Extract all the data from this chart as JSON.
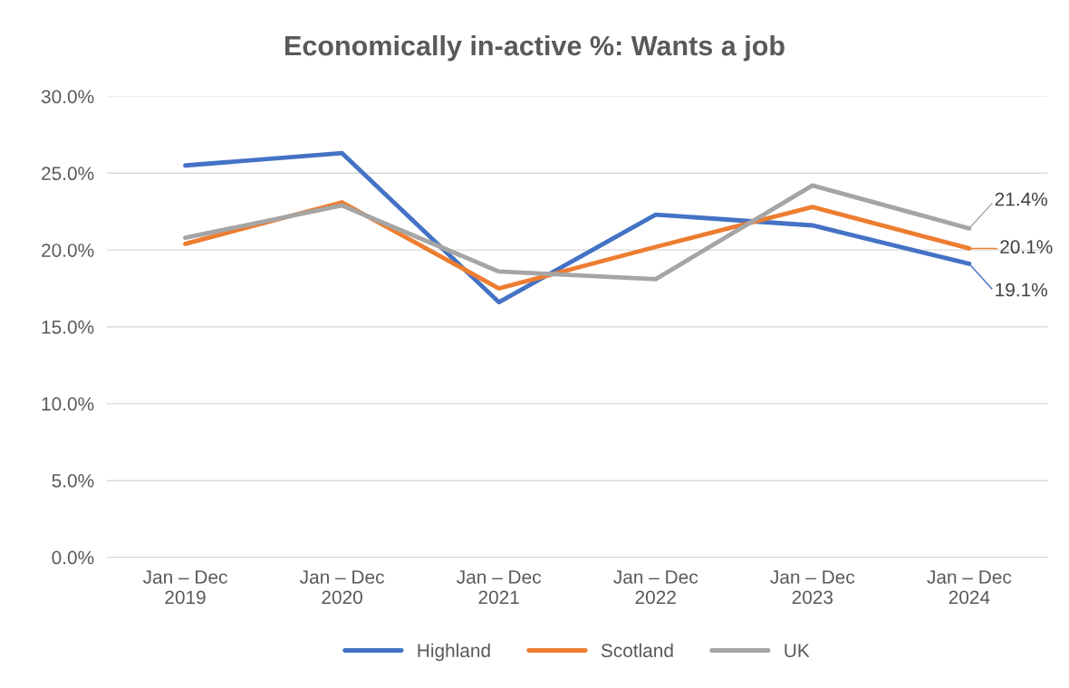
{
  "chart_data": {
    "type": "line",
    "title": "Economically in-active %: Wants a job",
    "categories": [
      "Jan – Dec\n2019",
      "Jan – Dec\n2020",
      "Jan – Dec\n2021",
      "Jan – Dec\n2022",
      "Jan – Dec\n2023",
      "Jan – Dec\n2024"
    ],
    "series": [
      {
        "name": "Highland",
        "color": "#4472c4",
        "values": [
          25.5,
          26.3,
          16.6,
          22.3,
          21.6,
          19.1
        ],
        "value_labels": [
          null,
          null,
          null,
          null,
          null,
          "19.1%"
        ]
      },
      {
        "name": "Scotland",
        "color": "#ed7d31",
        "values": [
          20.4,
          23.1,
          17.5,
          20.2,
          22.8,
          20.1
        ],
        "value_labels": [
          null,
          null,
          null,
          null,
          null,
          "20.1%"
        ]
      },
      {
        "name": "UK",
        "color": "#a5a5a5",
        "values": [
          20.8,
          22.9,
          18.6,
          18.1,
          24.2,
          21.4
        ],
        "value_labels": [
          null,
          null,
          null,
          null,
          null,
          "21.4%"
        ]
      }
    ],
    "ylim": [
      0,
      30
    ],
    "yticks": [
      {
        "value": 0,
        "label": "0.0%"
      },
      {
        "value": 5,
        "label": "5.0%"
      },
      {
        "value": 10,
        "label": "10.0%"
      },
      {
        "value": 15,
        "label": "15.0%"
      },
      {
        "value": 20,
        "label": "20.0%"
      },
      {
        "value": 25,
        "label": "25.0%"
      },
      {
        "value": 30,
        "label": "30.0%"
      }
    ],
    "grid": "y",
    "legend": "bottom",
    "marker": "none",
    "line_style": "solid"
  }
}
